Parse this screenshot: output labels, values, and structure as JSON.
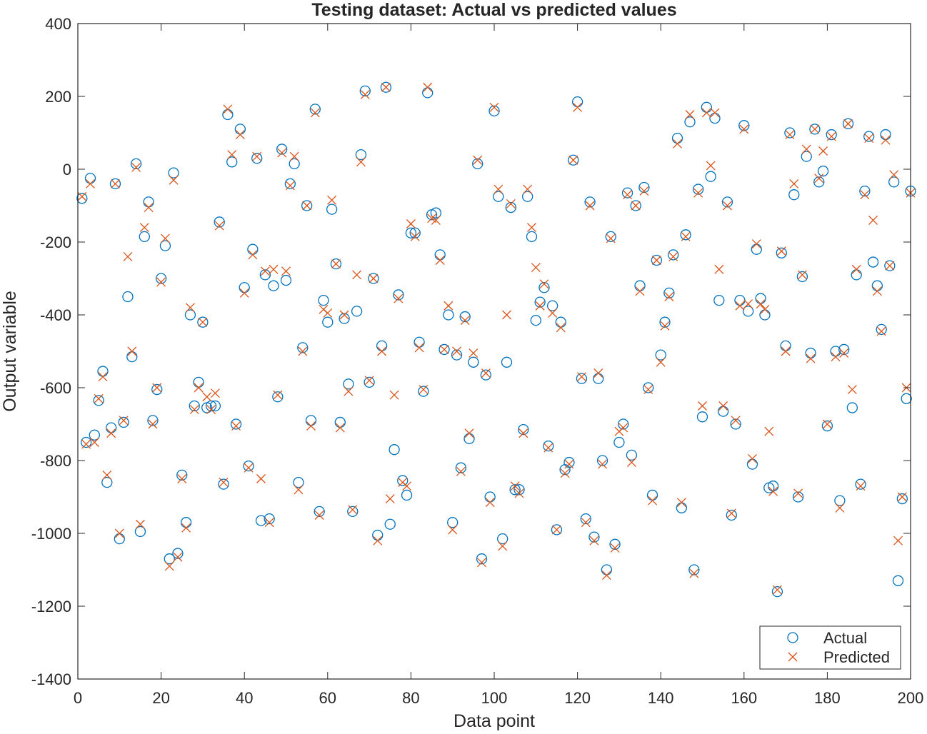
{
  "chart_data": {
    "type": "scatter",
    "title": "Testing dataset: Actual vs predicted values",
    "xlabel": "Data point",
    "ylabel": "Output variable",
    "xlim": [
      0,
      200
    ],
    "ylim": [
      -1400,
      400
    ],
    "grid": false,
    "box": true,
    "legend_position": "bottom-right",
    "x_ticks": [
      "0",
      "20",
      "40",
      "60",
      "80",
      "100",
      "120",
      "140",
      "160",
      "180",
      "200"
    ],
    "y_ticks": [
      "400",
      "200",
      "0",
      "-200",
      "-400",
      "-600",
      "-800",
      "-1000",
      "-1200",
      "-1400"
    ],
    "series": [
      {
        "name": "Actual",
        "marker": "circle",
        "color": "#0072BD",
        "x": [
          1,
          2,
          3,
          4,
          5,
          6,
          7,
          8,
          9,
          10,
          11,
          12,
          13,
          14,
          15,
          16,
          17,
          18,
          19,
          20,
          21,
          22,
          23,
          24,
          25,
          26,
          27,
          28,
          29,
          30,
          31,
          32,
          33,
          34,
          35,
          36,
          37,
          38,
          39,
          40,
          41,
          42,
          43,
          44,
          45,
          46,
          47,
          48,
          49,
          50,
          51,
          52,
          53,
          54,
          55,
          56,
          57,
          58,
          59,
          60,
          61,
          62,
          63,
          64,
          65,
          66,
          67,
          68,
          69,
          70,
          71,
          72,
          73,
          74,
          75,
          76,
          77,
          78,
          79,
          80,
          81,
          82,
          83,
          84,
          85,
          86,
          87,
          88,
          89,
          90,
          91,
          92,
          93,
          94,
          95,
          96,
          97,
          98,
          99,
          100,
          101,
          102,
          103,
          104,
          105,
          106,
          107,
          108,
          109,
          110,
          111,
          112,
          113,
          114,
          115,
          116,
          117,
          118,
          119,
          120,
          121,
          122,
          123,
          124,
          125,
          126,
          127,
          128,
          129,
          130,
          131,
          132,
          133,
          134,
          135,
          136,
          137,
          138,
          139,
          140,
          141,
          142,
          143,
          144,
          145,
          146,
          147,
          148,
          149,
          150,
          151,
          152,
          153,
          154,
          155,
          156,
          157,
          158,
          159,
          160,
          161,
          162,
          163,
          164,
          165,
          166,
          167,
          168,
          169,
          170,
          171,
          172,
          173,
          174,
          175,
          176,
          177,
          178,
          179,
          180,
          181,
          182,
          183,
          184,
          185,
          186,
          187,
          188,
          189,
          190,
          191,
          192,
          193,
          194,
          195,
          196,
          197,
          198,
          199,
          200
        ],
        "y": [
          -80,
          -750,
          -25,
          -730,
          -635,
          -555,
          -860,
          -710,
          -40,
          -1015,
          -695,
          -350,
          -515,
          15,
          -995,
          -185,
          -90,
          -690,
          -605,
          -300,
          -210,
          -1070,
          -10,
          -1055,
          -840,
          -970,
          -400,
          -650,
          -585,
          -420,
          -655,
          -650,
          -650,
          -145,
          -865,
          150,
          20,
          -700,
          110,
          -325,
          -815,
          -220,
          30,
          -965,
          -290,
          -960,
          -320,
          -625,
          55,
          -305,
          -40,
          15,
          -860,
          -490,
          -100,
          -690,
          165,
          -940,
          -360,
          -420,
          -110,
          -260,
          -695,
          -410,
          -590,
          -940,
          -390,
          40,
          215,
          -585,
          -300,
          -1005,
          -485,
          225,
          -975,
          -770,
          -345,
          -855,
          -895,
          -175,
          -175,
          -475,
          -610,
          210,
          -125,
          -120,
          -235,
          -495,
          -400,
          -970,
          -510,
          -820,
          -405,
          -740,
          -530,
          15,
          -1070,
          -565,
          -900,
          160,
          -75,
          -1015,
          -530,
          -105,
          -880,
          -880,
          -715,
          -75,
          -185,
          -415,
          -365,
          -325,
          -760,
          -375,
          -990,
          -420,
          -825,
          -805,
          25,
          185,
          -575,
          -960,
          -90,
          -1010,
          -575,
          -800,
          -1100,
          -185,
          -1030,
          -750,
          -700,
          -65,
          -785,
          -100,
          -320,
          -50,
          -600,
          -895,
          -250,
          -510,
          -420,
          -340,
          -235,
          85,
          -930,
          -180,
          130,
          -1100,
          -55,
          -680,
          170,
          -20,
          140,
          -360,
          -665,
          -90,
          -950,
          -700,
          -360,
          120,
          -390,
          -810,
          -220,
          -355,
          -400,
          -875,
          -870,
          -1160,
          -230,
          -485,
          100,
          -70,
          -900,
          -295,
          35,
          -505,
          110,
          -35,
          -5,
          -705,
          95,
          -500,
          -910,
          -495,
          125,
          -655,
          -290,
          -865,
          -60,
          90,
          -255,
          -320,
          -440,
          95,
          -265,
          -35,
          -1130,
          -905,
          -630,
          -60
        ]
      },
      {
        "name": "Predicted",
        "marker": "x",
        "color": "#D95319",
        "x": [
          1,
          2,
          3,
          4,
          5,
          6,
          7,
          8,
          9,
          10,
          11,
          12,
          13,
          14,
          15,
          16,
          17,
          18,
          19,
          20,
          21,
          22,
          23,
          24,
          25,
          26,
          27,
          28,
          29,
          30,
          31,
          32,
          33,
          34,
          35,
          36,
          37,
          38,
          39,
          40,
          41,
          42,
          43,
          44,
          45,
          46,
          47,
          48,
          49,
          50,
          51,
          52,
          53,
          54,
          55,
          56,
          57,
          58,
          59,
          60,
          61,
          62,
          63,
          64,
          65,
          66,
          67,
          68,
          69,
          70,
          71,
          72,
          73,
          74,
          75,
          76,
          77,
          78,
          79,
          80,
          81,
          82,
          83,
          84,
          85,
          86,
          87,
          88,
          89,
          90,
          91,
          92,
          93,
          94,
          95,
          96,
          97,
          98,
          99,
          100,
          101,
          102,
          103,
          104,
          105,
          106,
          107,
          108,
          109,
          110,
          111,
          112,
          113,
          114,
          115,
          116,
          117,
          118,
          119,
          120,
          121,
          122,
          123,
          124,
          125,
          126,
          127,
          128,
          129,
          130,
          131,
          132,
          133,
          134,
          135,
          136,
          137,
          138,
          139,
          140,
          141,
          142,
          143,
          144,
          145,
          146,
          147,
          148,
          149,
          150,
          151,
          152,
          153,
          154,
          155,
          156,
          157,
          158,
          159,
          160,
          161,
          162,
          163,
          164,
          165,
          166,
          167,
          168,
          169,
          170,
          171,
          172,
          173,
          174,
          175,
          176,
          177,
          178,
          179,
          180,
          181,
          182,
          183,
          184,
          185,
          186,
          187,
          188,
          189,
          190,
          191,
          192,
          193,
          194,
          195,
          196,
          197,
          198,
          199,
          200
        ],
        "y": [
          -75,
          -755,
          -40,
          -750,
          -630,
          -570,
          -840,
          -725,
          -40,
          -1000,
          -690,
          -240,
          -500,
          5,
          -975,
          -160,
          -105,
          -700,
          -600,
          -310,
          -190,
          -1090,
          -30,
          -1065,
          -850,
          -985,
          -380,
          -660,
          -600,
          -420,
          -625,
          -660,
          -615,
          -155,
          -860,
          165,
          40,
          -705,
          95,
          -340,
          -820,
          -235,
          35,
          -850,
          -280,
          -970,
          -275,
          -620,
          45,
          -280,
          -45,
          35,
          -880,
          -500,
          -100,
          -705,
          155,
          -950,
          -385,
          -395,
          -85,
          -260,
          -710,
          -400,
          -610,
          -935,
          -290,
          20,
          205,
          -580,
          -300,
          -1020,
          -500,
          225,
          -905,
          -620,
          -355,
          -860,
          -870,
          -150,
          -185,
          -490,
          -605,
          225,
          -135,
          -140,
          -250,
          -495,
          -375,
          -990,
          -500,
          -830,
          -415,
          -725,
          -505,
          25,
          -1080,
          -560,
          -915,
          170,
          -55,
          -1035,
          -400,
          -95,
          -870,
          -890,
          -725,
          -55,
          -160,
          -270,
          -375,
          -315,
          -765,
          -395,
          -990,
          -435,
          -835,
          -810,
          25,
          170,
          -570,
          -970,
          -100,
          -1020,
          -560,
          -810,
          -1115,
          -190,
          -1040,
          -720,
          -710,
          -70,
          -805,
          -100,
          -335,
          -60,
          -605,
          -910,
          -250,
          -530,
          -430,
          -350,
          -240,
          70,
          -915,
          -185,
          150,
          -1110,
          -65,
          -650,
          155,
          10,
          155,
          -275,
          -650,
          -100,
          -945,
          -690,
          -375,
          110,
          -370,
          -795,
          -205,
          -370,
          -385,
          -720,
          -885,
          -1155,
          -225,
          -500,
          95,
          -40,
          -890,
          -290,
          55,
          -520,
          110,
          -25,
          50,
          -700,
          90,
          -515,
          -930,
          -505,
          125,
          -605,
          -275,
          -870,
          -70,
          85,
          -140,
          -335,
          -445,
          80,
          -265,
          -15,
          -1020,
          -900,
          -600,
          -65
        ]
      }
    ]
  }
}
